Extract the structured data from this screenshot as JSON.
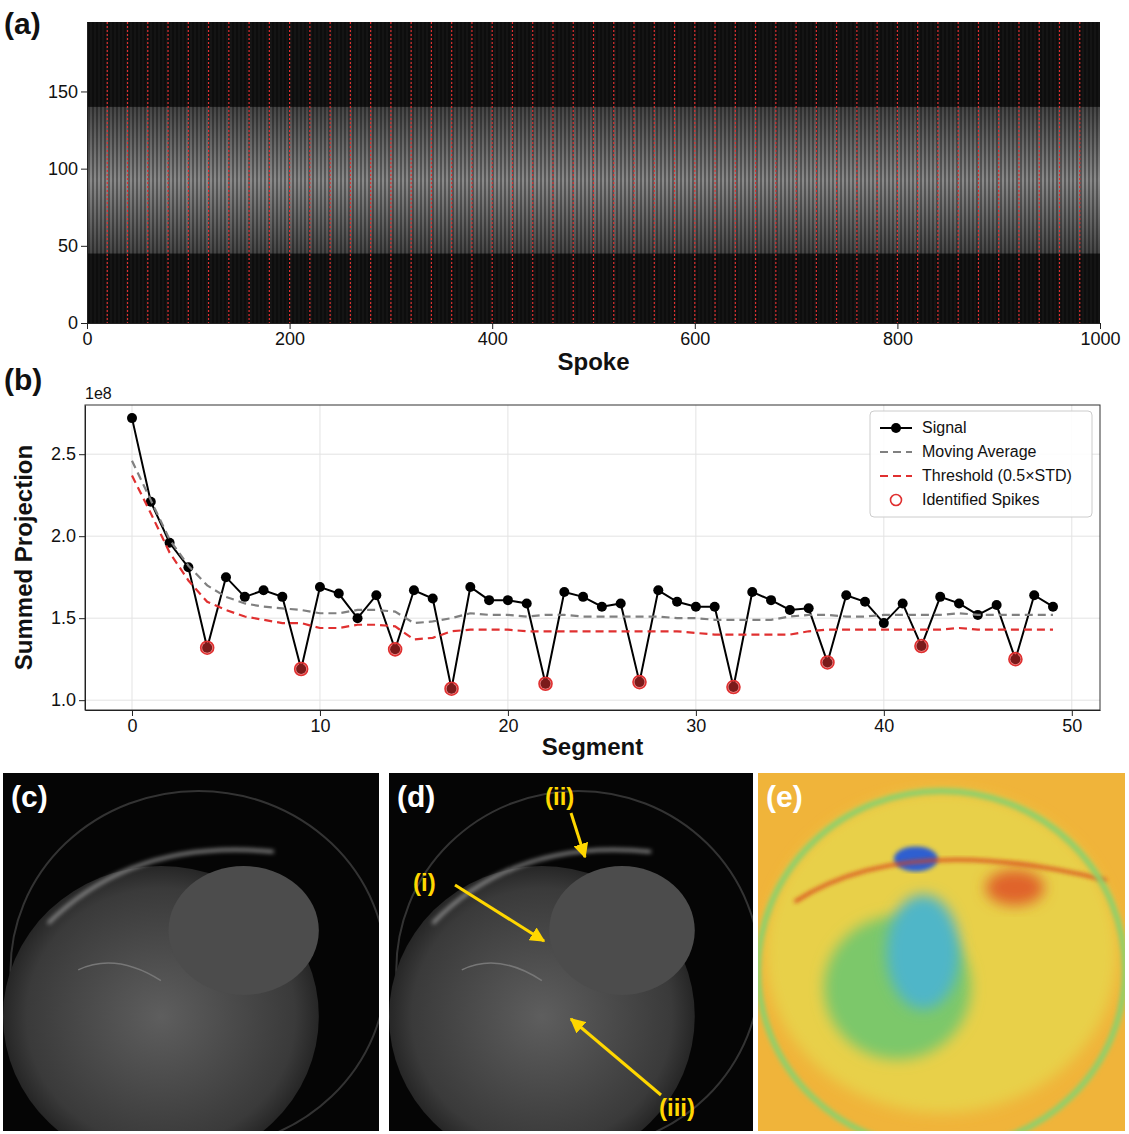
{
  "chart_data": [
    {
      "panel": "(a)",
      "type": "image",
      "x_label": "Spoke",
      "xlim": [
        0,
        1000
      ],
      "xticks": [
        0,
        200,
        400,
        600,
        800,
        1000
      ],
      "ylim": [
        0,
        195
      ],
      "yticks": [
        0,
        50,
        100,
        150
      ],
      "signal_band": [
        45,
        140
      ],
      "boundary_color": "#e03030",
      "segment_boundaries": [
        20,
        40,
        60,
        80,
        100,
        120,
        140,
        160,
        180,
        200,
        220,
        240,
        260,
        280,
        300,
        320,
        340,
        360,
        380,
        400,
        420,
        440,
        460,
        480,
        500,
        520,
        540,
        560,
        580,
        600,
        620,
        640,
        660,
        680,
        700,
        720,
        740,
        760,
        780,
        800,
        820,
        840,
        860,
        880,
        900,
        920,
        940,
        960,
        980
      ]
    },
    {
      "panel": "(b)",
      "type": "line",
      "x_label": "Segment",
      "y_label": "Summed Projection",
      "y_multiplier_label": "1e8",
      "x": [
        0,
        1,
        2,
        3,
        4,
        5,
        6,
        7,
        8,
        9,
        10,
        11,
        12,
        13,
        14,
        15,
        16,
        17,
        18,
        19,
        20,
        21,
        22,
        23,
        24,
        25,
        26,
        27,
        28,
        29,
        30,
        31,
        32,
        33,
        34,
        35,
        36,
        37,
        38,
        39,
        40,
        41,
        42,
        43,
        44,
        45,
        46,
        47,
        48,
        49
      ],
      "xlim": [
        -2.5,
        51.5
      ],
      "xticks": [
        0,
        10,
        20,
        30,
        40,
        50
      ],
      "ylim": [
        0.94,
        2.8
      ],
      "yticks": [
        {
          "value": 1,
          "label": "1.0"
        },
        {
          "value": 1.5,
          "label": "1.5"
        },
        {
          "value": 2,
          "label": "2.0"
        },
        {
          "value": 2.5,
          "label": "2.5"
        }
      ],
      "grid": true,
      "legend": "upper right",
      "series": [
        {
          "name": "Signal",
          "color": "#000000",
          "marker": "circle",
          "line_style": "solid",
          "values": [
            2.72,
            2.21,
            1.96,
            1.81,
            1.32,
            1.75,
            1.63,
            1.67,
            1.63,
            1.19,
            1.69,
            1.65,
            1.5,
            1.64,
            1.31,
            1.67,
            1.62,
            1.07,
            1.69,
            1.61,
            1.61,
            1.59,
            1.1,
            1.66,
            1.63,
            1.57,
            1.59,
            1.11,
            1.67,
            1.6,
            1.57,
            1.57,
            1.08,
            1.66,
            1.61,
            1.55,
            1.56,
            1.23,
            1.64,
            1.6,
            1.47,
            1.59,
            1.33,
            1.63,
            1.59,
            1.52,
            1.58,
            1.25,
            1.64,
            1.57
          ]
        },
        {
          "name": "Moving Average",
          "color": "#808080",
          "line_style": "dashed",
          "values": [
            2.46,
            2.22,
            1.98,
            1.82,
            1.7,
            1.63,
            1.59,
            1.57,
            1.56,
            1.55,
            1.53,
            1.53,
            1.55,
            1.55,
            1.54,
            1.47,
            1.48,
            1.5,
            1.53,
            1.52,
            1.52,
            1.51,
            1.52,
            1.52,
            1.51,
            1.51,
            1.51,
            1.51,
            1.51,
            1.5,
            1.5,
            1.49,
            1.49,
            1.49,
            1.49,
            1.51,
            1.52,
            1.52,
            1.51,
            1.51,
            1.52,
            1.52,
            1.52,
            1.52,
            1.53,
            1.52,
            1.52,
            1.52,
            1.52,
            1.52
          ]
        },
        {
          "name": "Threshold (0.5×STD)",
          "color": "#e03030",
          "line_style": "dashed",
          "values": [
            2.37,
            2.14,
            1.9,
            1.73,
            1.6,
            1.55,
            1.51,
            1.49,
            1.47,
            1.47,
            1.44,
            1.44,
            1.46,
            1.46,
            1.45,
            1.37,
            1.38,
            1.42,
            1.43,
            1.43,
            1.43,
            1.42,
            1.42,
            1.42,
            1.42,
            1.42,
            1.42,
            1.42,
            1.42,
            1.42,
            1.41,
            1.4,
            1.4,
            1.4,
            1.4,
            1.4,
            1.42,
            1.43,
            1.43,
            1.43,
            1.43,
            1.43,
            1.43,
            1.43,
            1.44,
            1.43,
            1.43,
            1.43,
            1.43,
            1.43
          ]
        },
        {
          "name": "Identified Spikes",
          "type": "scatter",
          "color": "#e03030",
          "marker": "open_circle",
          "x": [
            4,
            9,
            14,
            17,
            22,
            27,
            32,
            37,
            42,
            47
          ],
          "values": [
            1.32,
            1.19,
            1.31,
            1.07,
            1.1,
            1.11,
            1.08,
            1.23,
            1.33,
            1.25
          ]
        }
      ]
    }
  ],
  "images": [
    {
      "label": "(c)"
    },
    {
      "label": "(d)",
      "annotations": [
        "(i)",
        "(ii)",
        "(iii)"
      ]
    },
    {
      "label": "(e)"
    }
  ]
}
